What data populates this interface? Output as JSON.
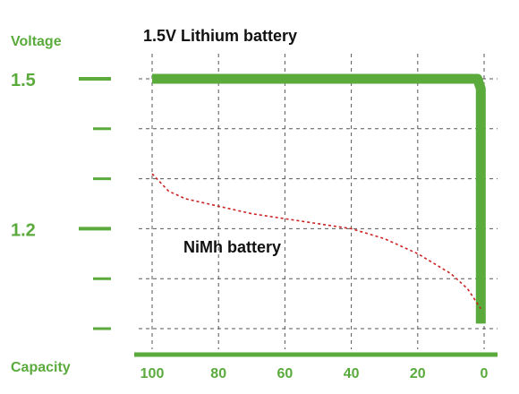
{
  "chart_data": {
    "type": "line",
    "title": "",
    "ylabel": "Voltage",
    "xlabel": "Capacity",
    "x_ticks": [
      100,
      80,
      60,
      40,
      20,
      0
    ],
    "y_tick_labels": [
      {
        "value": 1.5,
        "label": "1.5"
      },
      {
        "value": 1.2,
        "label": "1.2"
      }
    ],
    "y_minor_ticks": [
      1.4,
      1.3,
      1.1,
      1.0
    ],
    "xlim": [
      100,
      0
    ],
    "ylim": [
      0.98,
      1.5
    ],
    "grid": true,
    "series": [
      {
        "name": "1.5V Lithium battery",
        "style": "solid-thick",
        "color": "#5aaa3c",
        "x": [
          100,
          80,
          60,
          40,
          20,
          2,
          1,
          1
        ],
        "y": [
          1.5,
          1.5,
          1.5,
          1.5,
          1.5,
          1.5,
          1.48,
          1.01
        ]
      },
      {
        "name": "NiMh battery",
        "style": "dashed",
        "color": "#cc2222",
        "x": [
          100,
          95,
          90,
          80,
          70,
          60,
          50,
          40,
          30,
          20,
          10,
          5,
          1
        ],
        "y": [
          1.31,
          1.275,
          1.26,
          1.245,
          1.23,
          1.22,
          1.21,
          1.2,
          1.18,
          1.15,
          1.11,
          1.08,
          1.04
        ]
      }
    ]
  },
  "colors": {
    "accent": "#5aaa3c",
    "grid": "#555555",
    "nimh": "#cc2222",
    "label": "#111111"
  }
}
